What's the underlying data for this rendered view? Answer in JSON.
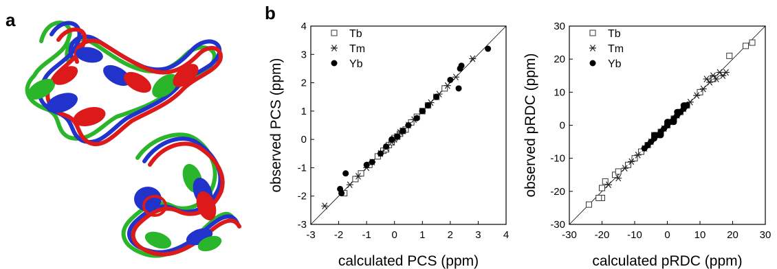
{
  "panel_labels": {
    "a": "a",
    "b": "b"
  },
  "structure_colors": [
    "#2bb52b",
    "#2233cc",
    "#dd1a1a"
  ],
  "chart_data": [
    {
      "type": "scatter",
      "xlabel": "calculated PCS (ppm)",
      "ylabel": "observed PCS (ppm)",
      "xlim": [
        -3,
        4
      ],
      "ylim": [
        -3,
        4
      ],
      "xticks": [
        -3,
        -2,
        -1,
        0,
        1,
        2,
        3,
        4
      ],
      "yticks": [
        -3,
        -2,
        -1,
        0,
        1,
        2,
        3,
        4
      ],
      "tick_labels_x": [
        "-3",
        "-2",
        "-1",
        "0",
        "1",
        "2",
        "3",
        "4"
      ],
      "tick_labels_y": [
        "-3",
        "-2",
        "-1",
        "0",
        "1",
        "2",
        "3",
        "4"
      ],
      "diagonal": true,
      "grid": false,
      "legend_position": "top-left",
      "series": [
        {
          "name": "Tb",
          "marker": "open-square",
          "points": [
            [
              -1.8,
              -1.9
            ],
            [
              -1.4,
              -1.4
            ],
            [
              -1.2,
              -1.2
            ],
            [
              -0.9,
              -0.9
            ],
            [
              -0.6,
              -0.6
            ],
            [
              -0.4,
              -0.4
            ],
            [
              -0.2,
              -0.2
            ],
            [
              0.0,
              0.05
            ],
            [
              0.2,
              0.2
            ],
            [
              0.4,
              0.35
            ],
            [
              0.6,
              0.6
            ],
            [
              0.8,
              0.8
            ],
            [
              1.0,
              1.0
            ],
            [
              1.2,
              1.2
            ],
            [
              1.5,
              1.5
            ],
            [
              1.8,
              1.8
            ],
            [
              0.3,
              0.3
            ],
            [
              -0.3,
              -0.35
            ],
            [
              0.1,
              0.1
            ],
            [
              -0.1,
              -0.1
            ]
          ]
        },
        {
          "name": "Tm",
          "marker": "asterisk",
          "points": [
            [
              -2.5,
              -2.35
            ],
            [
              -1.6,
              -1.6
            ],
            [
              -1.3,
              -1.3
            ],
            [
              -1.0,
              -1.0
            ],
            [
              -0.8,
              -0.8
            ],
            [
              -0.5,
              -0.5
            ],
            [
              -0.3,
              -0.3
            ],
            [
              -0.1,
              -0.1
            ],
            [
              0.1,
              0.1
            ],
            [
              0.3,
              0.3
            ],
            [
              0.5,
              0.5
            ],
            [
              0.7,
              0.7
            ],
            [
              1.0,
              1.0
            ],
            [
              1.3,
              1.3
            ],
            [
              1.6,
              1.6
            ],
            [
              1.9,
              1.9
            ],
            [
              2.2,
              2.2
            ],
            [
              2.8,
              2.85
            ],
            [
              0.0,
              0.0
            ],
            [
              0.2,
              0.25
            ]
          ]
        },
        {
          "name": "Yb",
          "marker": "filled-circle",
          "points": [
            [
              -1.9,
              -1.9
            ],
            [
              -1.95,
              -1.75
            ],
            [
              -1.75,
              -1.2
            ],
            [
              -1.0,
              -0.9
            ],
            [
              -0.8,
              -0.8
            ],
            [
              -0.5,
              -0.5
            ],
            [
              -0.3,
              -0.25
            ],
            [
              -0.1,
              0.0
            ],
            [
              0.1,
              0.1
            ],
            [
              0.3,
              0.3
            ],
            [
              0.5,
              0.5
            ],
            [
              0.8,
              0.75
            ],
            [
              1.0,
              1.0
            ],
            [
              1.2,
              1.2
            ],
            [
              1.5,
              1.5
            ],
            [
              2.0,
              2.1
            ],
            [
              2.3,
              1.8
            ],
            [
              2.35,
              2.5
            ],
            [
              2.4,
              2.6
            ],
            [
              3.35,
              3.2
            ]
          ]
        }
      ]
    },
    {
      "type": "scatter",
      "xlabel": "calculated pRDC (ppm)",
      "ylabel": "observed pRDC (ppm)",
      "xlim": [
        -30,
        30
      ],
      "ylim": [
        -30,
        30
      ],
      "xticks": [
        -30,
        -20,
        -10,
        0,
        10,
        20,
        30
      ],
      "yticks": [
        -30,
        -20,
        -10,
        0,
        10,
        20,
        30
      ],
      "tick_labels_x": [
        "-30",
        "-20",
        "-10",
        "0",
        "10",
        "20",
        "30"
      ],
      "tick_labels_y": [
        "-30",
        "-20",
        "-10",
        "0",
        "10",
        "20",
        "30"
      ],
      "diagonal": true,
      "grid": false,
      "legend_position": "top-left",
      "series": [
        {
          "name": "Tb",
          "marker": "open-square",
          "points": [
            [
              -24,
              -24
            ],
            [
              -20,
              -22
            ],
            [
              -21,
              -22
            ],
            [
              -20,
              -19
            ],
            [
              -19,
              -17
            ],
            [
              -16,
              -15
            ],
            [
              -15,
              -14
            ],
            [
              -12,
              -12
            ],
            [
              -10,
              -10
            ],
            [
              -8,
              -8
            ],
            [
              -6,
              -6
            ],
            [
              -4,
              -3
            ],
            [
              -2,
              -2
            ],
            [
              0,
              0
            ],
            [
              2,
              2
            ],
            [
              4,
              4
            ],
            [
              6,
              6
            ],
            [
              10,
              10
            ],
            [
              14,
              14
            ],
            [
              19,
              21
            ],
            [
              24,
              24
            ],
            [
              26,
              25
            ]
          ]
        },
        {
          "name": "Tm",
          "marker": "asterisk",
          "points": [
            [
              -18,
              -18
            ],
            [
              -15,
              -16
            ],
            [
              -13,
              -13
            ],
            [
              -11,
              -11
            ],
            [
              -9,
              -9
            ],
            [
              -7,
              -7
            ],
            [
              -5,
              -5
            ],
            [
              -3,
              -3
            ],
            [
              -1,
              -1
            ],
            [
              1,
              1
            ],
            [
              3,
              3
            ],
            [
              5,
              5
            ],
            [
              7,
              7
            ],
            [
              9,
              9
            ],
            [
              11,
              11
            ],
            [
              13,
              13
            ],
            [
              14,
              15
            ],
            [
              15,
              14
            ],
            [
              16,
              16
            ],
            [
              17,
              15
            ],
            [
              18,
              16
            ],
            [
              12,
              14
            ]
          ]
        },
        {
          "name": "Yb",
          "marker": "filled-circle",
          "points": [
            [
              -7,
              -7
            ],
            [
              -6,
              -6
            ],
            [
              -5,
              -5
            ],
            [
              -4,
              -4
            ],
            [
              -3,
              -3
            ],
            [
              -2,
              -2
            ],
            [
              -1,
              -1
            ],
            [
              0,
              0
            ],
            [
              1,
              1
            ],
            [
              2,
              2
            ],
            [
              3,
              3
            ],
            [
              4,
              4
            ],
            [
              5,
              5
            ],
            [
              6,
              6
            ],
            [
              -4,
              -3
            ],
            [
              3,
              4
            ],
            [
              0,
              1
            ],
            [
              -2,
              -3
            ],
            [
              2,
              1
            ],
            [
              5,
              6
            ]
          ]
        }
      ]
    }
  ]
}
